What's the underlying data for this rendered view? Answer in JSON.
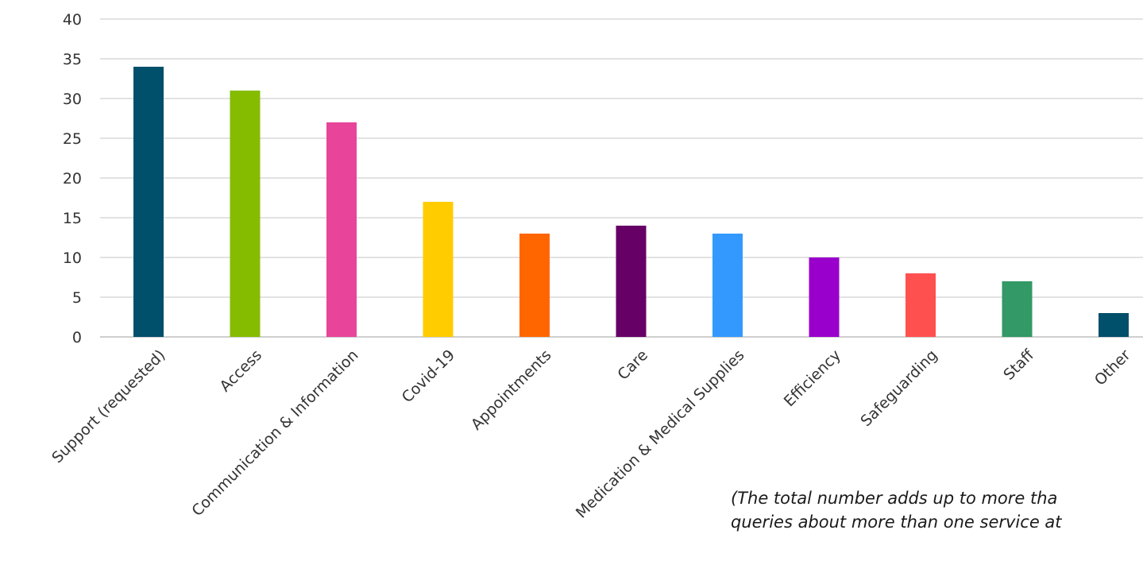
{
  "chart_data": {
    "type": "bar",
    "categories": [
      "Support (requested)",
      "Access",
      "Communication & Information",
      "Covid-19",
      "Appointments",
      "Care",
      "Medication & Medical Supplies",
      "Efficiency",
      "Safeguarding",
      "Staff",
      "Other"
    ],
    "values": [
      34,
      31,
      27,
      17,
      13,
      14,
      13,
      10,
      8,
      7,
      3
    ],
    "colors": [
      "#004f6b",
      "#85bc00",
      "#e8449a",
      "#ffcc00",
      "#ff6600",
      "#660066",
      "#3399ff",
      "#9900cc",
      "#ff5050",
      "#339966",
      "#004f6b"
    ],
    "ylim": [
      0,
      40
    ],
    "yticks": [
      0,
      5,
      10,
      15,
      20,
      25,
      30,
      35,
      40
    ],
    "grid": true,
    "legend": "none"
  },
  "note": {
    "line1": "(The total number adds up to more tha",
    "line2": "queries about more than one service at"
  }
}
